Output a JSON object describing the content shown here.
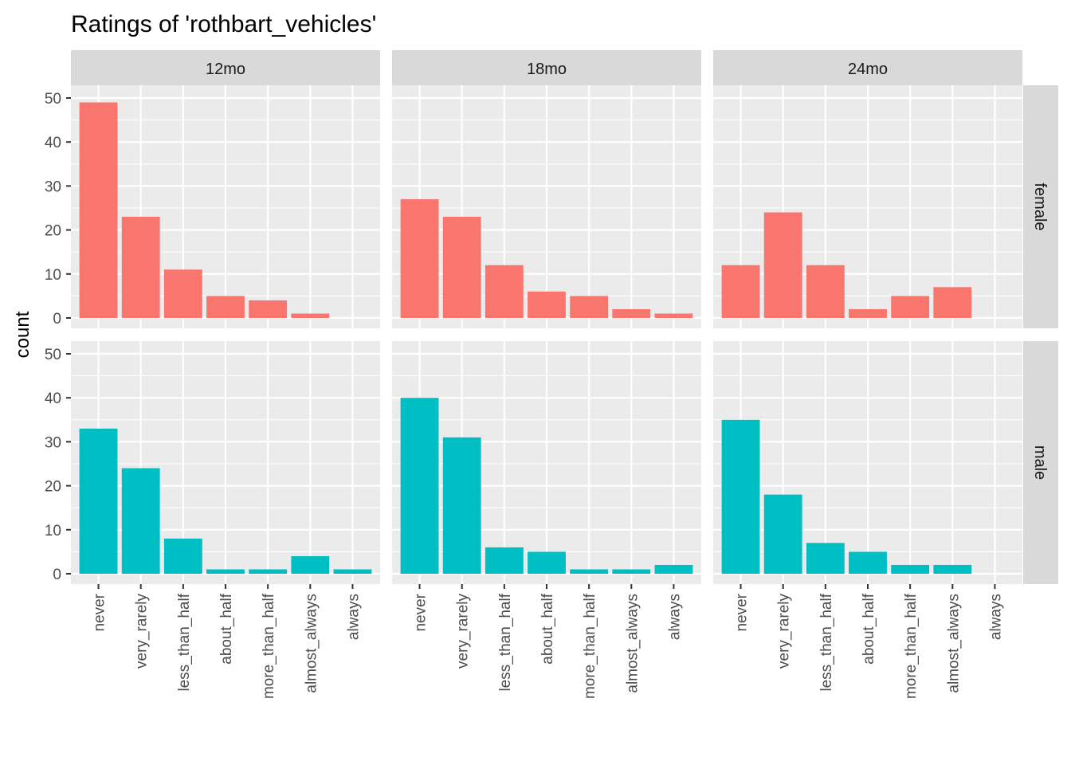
{
  "chart_data": {
    "type": "bar",
    "title": "Ratings of 'rothbart_vehicles'",
    "xlabel": "",
    "ylabel": "count",
    "ylim": [
      0,
      50
    ],
    "yticks": [
      0,
      10,
      20,
      30,
      40,
      50
    ],
    "grid": true,
    "legend": "none",
    "categories": [
      "never",
      "very_rarely",
      "less_than_half",
      "about_half",
      "more_than_half",
      "almost_always",
      "always"
    ],
    "facet_cols": [
      "12mo",
      "18mo",
      "24mo"
    ],
    "facet_rows": [
      "female",
      "male"
    ],
    "colors": {
      "female": "#F8766D",
      "male": "#00BFC4"
    },
    "panels": [
      {
        "col": "12mo",
        "row": "female",
        "values": [
          49,
          23,
          11,
          5,
          4,
          1,
          0
        ]
      },
      {
        "col": "18mo",
        "row": "female",
        "values": [
          27,
          23,
          12,
          6,
          5,
          2,
          1
        ]
      },
      {
        "col": "24mo",
        "row": "female",
        "values": [
          12,
          24,
          12,
          2,
          5,
          7,
          0
        ]
      },
      {
        "col": "12mo",
        "row": "male",
        "values": [
          33,
          24,
          8,
          1,
          1,
          4,
          1
        ]
      },
      {
        "col": "18mo",
        "row": "male",
        "values": [
          40,
          31,
          6,
          5,
          1,
          1,
          2
        ]
      },
      {
        "col": "24mo",
        "row": "male",
        "values": [
          35,
          18,
          7,
          5,
          2,
          2,
          0
        ]
      }
    ]
  }
}
